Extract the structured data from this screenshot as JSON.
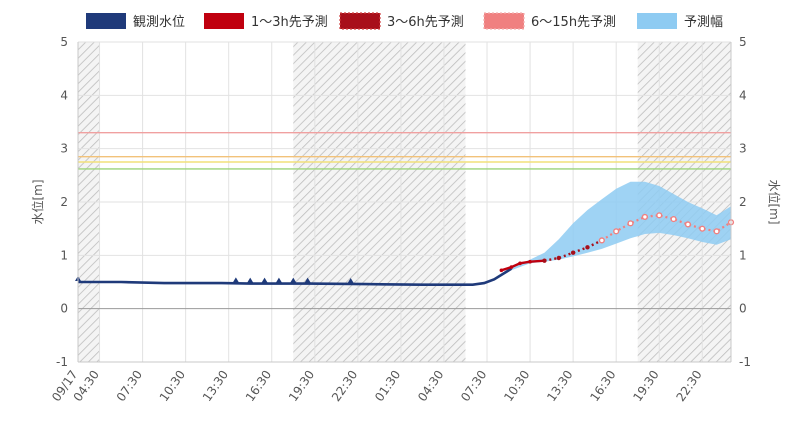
{
  "chart_data": {
    "type": "line",
    "title": "",
    "ylabel_left": "水位[m]",
    "ylabel_right": "水位[m]",
    "ylim": [
      -1,
      5
    ],
    "yticks": [
      -1,
      0,
      1,
      2,
      3,
      4,
      5
    ],
    "x_range_hours": [
      0,
      45.5
    ],
    "x_ticks": [
      {
        "hour": 0,
        "label": "09/17"
      },
      {
        "hour": 1.5,
        "label": "04:30"
      },
      {
        "hour": 4.5,
        "label": "07:30"
      },
      {
        "hour": 7.5,
        "label": "10:30"
      },
      {
        "hour": 10.5,
        "label": "13:30"
      },
      {
        "hour": 13.5,
        "label": "16:30"
      },
      {
        "hour": 16.5,
        "label": "19:30"
      },
      {
        "hour": 19.5,
        "label": "22:30"
      },
      {
        "hour": 22.5,
        "label": "01:30"
      },
      {
        "hour": 25.5,
        "label": "04:30"
      },
      {
        "hour": 28.5,
        "label": "07:30"
      },
      {
        "hour": 31.5,
        "label": "10:30"
      },
      {
        "hour": 34.5,
        "label": "13:30"
      },
      {
        "hour": 37.5,
        "label": "16:30"
      },
      {
        "hour": 40.5,
        "label": "19:30"
      },
      {
        "hour": 43.5,
        "label": "22:30"
      }
    ],
    "legend": [
      {
        "key": "observed",
        "label": "観測水位",
        "color": "#1f3a7a"
      },
      {
        "key": "f1_3",
        "label": "1〜3h先予測",
        "color": "#c0000f"
      },
      {
        "key": "f3_6",
        "label": "3〜6h先予測",
        "color": "#a80f1a"
      },
      {
        "key": "f6_15",
        "label": "6〜15h先予測",
        "color": "#f08080"
      },
      {
        "key": "band",
        "label": "予測幅",
        "color": "#8ecbf2"
      }
    ],
    "night_shading_hours": [
      [
        0,
        1.5
      ],
      [
        15,
        27
      ],
      [
        39,
        45.5
      ]
    ],
    "threshold_lines": [
      {
        "value": 3.3,
        "color": "#f0a0a0"
      },
      {
        "value": 2.85,
        "color": "#f2c27a"
      },
      {
        "value": 2.75,
        "color": "#f2e07a"
      },
      {
        "value": 2.62,
        "color": "#9bd37a"
      }
    ],
    "series": {
      "observed": [
        [
          0,
          0.5
        ],
        [
          3,
          0.5
        ],
        [
          6,
          0.48
        ],
        [
          10,
          0.48
        ],
        [
          12,
          0.47
        ],
        [
          16,
          0.47
        ],
        [
          20,
          0.46
        ],
        [
          24,
          0.45
        ],
        [
          27.5,
          0.45
        ],
        [
          28.3,
          0.48
        ],
        [
          29,
          0.55
        ],
        [
          29.6,
          0.65
        ],
        [
          30.2,
          0.75
        ]
      ],
      "observed_markers": [
        0,
        11,
        12,
        13,
        14,
        15,
        16,
        19
      ],
      "f1_3": [
        [
          29.5,
          0.72
        ],
        [
          30.2,
          0.78
        ],
        [
          30.8,
          0.85
        ],
        [
          31.5,
          0.88
        ],
        [
          32.5,
          0.9
        ]
      ],
      "f3_6": [
        [
          32.5,
          0.9
        ],
        [
          33.5,
          0.95
        ],
        [
          34.5,
          1.05
        ],
        [
          35.5,
          1.15
        ],
        [
          36.5,
          1.28
        ]
      ],
      "f6_15": [
        [
          36.5,
          1.28
        ],
        [
          37.5,
          1.45
        ],
        [
          38.5,
          1.6
        ],
        [
          39.5,
          1.72
        ],
        [
          40.5,
          1.75
        ],
        [
          41.5,
          1.68
        ],
        [
          42.5,
          1.58
        ],
        [
          43.5,
          1.5
        ],
        [
          44.5,
          1.45
        ],
        [
          45.5,
          1.62
        ]
      ],
      "band_upper": [
        [
          30.2,
          0.78
        ],
        [
          31.5,
          0.92
        ],
        [
          32.5,
          1.05
        ],
        [
          33.5,
          1.3
        ],
        [
          34.5,
          1.6
        ],
        [
          35.5,
          1.85
        ],
        [
          36.5,
          2.05
        ],
        [
          37.5,
          2.25
        ],
        [
          38.5,
          2.38
        ],
        [
          39.5,
          2.38
        ],
        [
          40.5,
          2.3
        ],
        [
          41.5,
          2.15
        ],
        [
          42.5,
          2.0
        ],
        [
          43.5,
          1.88
        ],
        [
          44.5,
          1.75
        ],
        [
          45.5,
          1.92
        ]
      ],
      "band_lower": [
        [
          30.2,
          0.72
        ],
        [
          31.5,
          0.85
        ],
        [
          32.5,
          0.88
        ],
        [
          33.5,
          0.92
        ],
        [
          34.5,
          0.98
        ],
        [
          35.5,
          1.05
        ],
        [
          36.5,
          1.12
        ],
        [
          37.5,
          1.22
        ],
        [
          38.5,
          1.32
        ],
        [
          39.5,
          1.4
        ],
        [
          40.5,
          1.42
        ],
        [
          41.5,
          1.38
        ],
        [
          42.5,
          1.32
        ],
        [
          43.5,
          1.25
        ],
        [
          44.5,
          1.2
        ],
        [
          45.5,
          1.3
        ]
      ]
    }
  }
}
